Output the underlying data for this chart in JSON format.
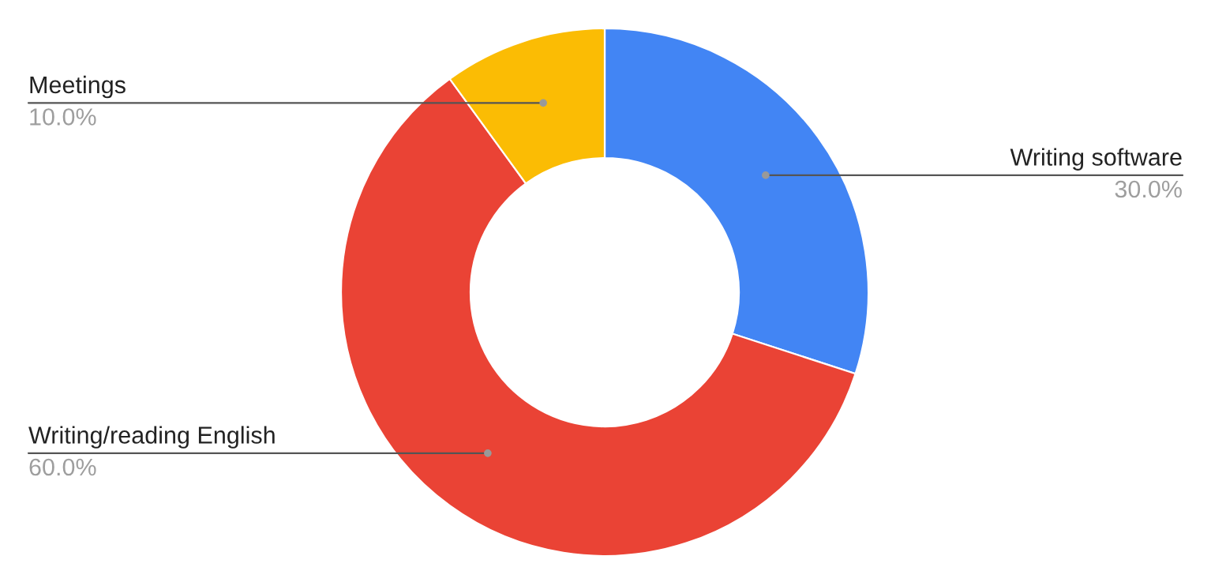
{
  "chart_data": {
    "type": "donut",
    "categories": [
      "Writing software",
      "Writing/reading English",
      "Meetings"
    ],
    "values": [
      30,
      60,
      10
    ],
    "value_labels": [
      "30.0%",
      "60.0%",
      "10.0%"
    ],
    "colors": [
      "#4285f4",
      "#ea4335",
      "#fbbc04"
    ],
    "legend": false
  }
}
